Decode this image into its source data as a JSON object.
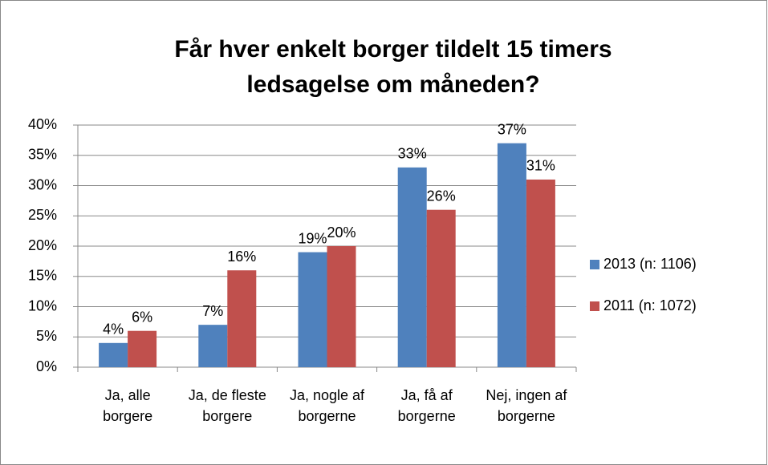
{
  "chart_data": {
    "type": "bar",
    "title": "Får hver enkelt borger tildelt 15 timers ledsagelse om måneden?",
    "categories": [
      "Ja, alle borgere",
      "Ja, de fleste borgere",
      "Ja, nogle af borgerne",
      "Ja, få af borgerne",
      "Nej, ingen af borgerne"
    ],
    "series": [
      {
        "name": "2013 (n: 1106)",
        "color": "#4f81bd",
        "values": [
          4,
          7,
          19,
          33,
          37
        ],
        "value_labels": [
          "4%",
          "7%",
          "19%",
          "33%",
          "37%"
        ]
      },
      {
        "name": "2011 (n: 1072)",
        "color": "#c0504d",
        "values": [
          6,
          16,
          20,
          26,
          31
        ],
        "value_labels": [
          "6%",
          "16%",
          "20%",
          "26%",
          "31%"
        ]
      }
    ],
    "ylim": [
      0,
      40
    ],
    "yticks": [
      {
        "value": 0,
        "label": "0%"
      },
      {
        "value": 5,
        "label": "5%"
      },
      {
        "value": 10,
        "label": "10%"
      },
      {
        "value": 15,
        "label": "15%"
      },
      {
        "value": 20,
        "label": "20%"
      },
      {
        "value": 25,
        "label": "25%"
      },
      {
        "value": 30,
        "label": "30%"
      },
      {
        "value": 35,
        "label": "35%"
      },
      {
        "value": 40,
        "label": "40%"
      }
    ],
    "grid": true,
    "legend": "right"
  }
}
